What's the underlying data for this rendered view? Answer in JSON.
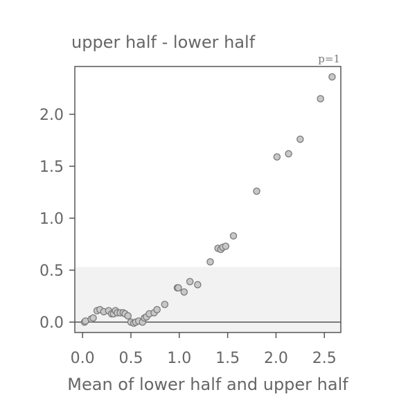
{
  "chart_data": {
    "type": "scatter",
    "title": "upper half - lower half",
    "xlabel": "Mean of lower half and upper half",
    "ylabel": "",
    "annotation": "p=1",
    "xlim": [
      -0.08,
      2.67
    ],
    "ylim": [
      -0.1,
      2.46
    ],
    "xticks": [
      0.0,
      0.5,
      1.0,
      1.5,
      2.0,
      2.5
    ],
    "xtick_labels": [
      "0.0",
      "0.5",
      "1.0",
      "1.5",
      "2.0",
      "2.5"
    ],
    "yticks": [
      0.0,
      0.5,
      1.0,
      1.5,
      2.0
    ],
    "ytick_labels": [
      "0.0",
      "0.5",
      "1.0",
      "1.5",
      "2.0"
    ],
    "reference_line_y": 0,
    "shaded_band": [
      -0.1,
      0.53
    ],
    "grid": false,
    "colors": {
      "point_fill": "#c8c8c8",
      "point_edge": "#7a7a7a",
      "band": "#f2f2f2",
      "axes": "#555555",
      "text": "#666666"
    },
    "x": [
      0.02,
      0.03,
      0.09,
      0.11,
      0.15,
      0.18,
      0.22,
      0.27,
      0.3,
      0.32,
      0.34,
      0.36,
      0.39,
      0.42,
      0.44,
      0.47,
      0.5,
      0.53,
      0.55,
      0.58,
      0.62,
      0.64,
      0.66,
      0.69,
      0.74,
      0.77,
      0.85,
      0.98,
      0.99,
      1.05,
      1.11,
      1.19,
      1.32,
      1.4,
      1.43,
      1.45,
      1.48,
      1.56,
      1.8,
      2.01,
      2.13,
      2.25,
      2.46,
      2.58
    ],
    "y": [
      0.0,
      0.01,
      0.03,
      0.04,
      0.11,
      0.12,
      0.1,
      0.11,
      0.08,
      0.08,
      0.11,
      0.09,
      0.09,
      0.09,
      0.08,
      0.06,
      0.0,
      -0.01,
      0.0,
      0.01,
      0.0,
      0.04,
      0.05,
      0.08,
      0.09,
      0.12,
      0.17,
      0.33,
      0.33,
      0.29,
      0.39,
      0.36,
      0.58,
      0.71,
      0.7,
      0.72,
      0.73,
      0.83,
      1.26,
      1.59,
      1.62,
      1.76,
      2.15,
      2.36
    ]
  }
}
